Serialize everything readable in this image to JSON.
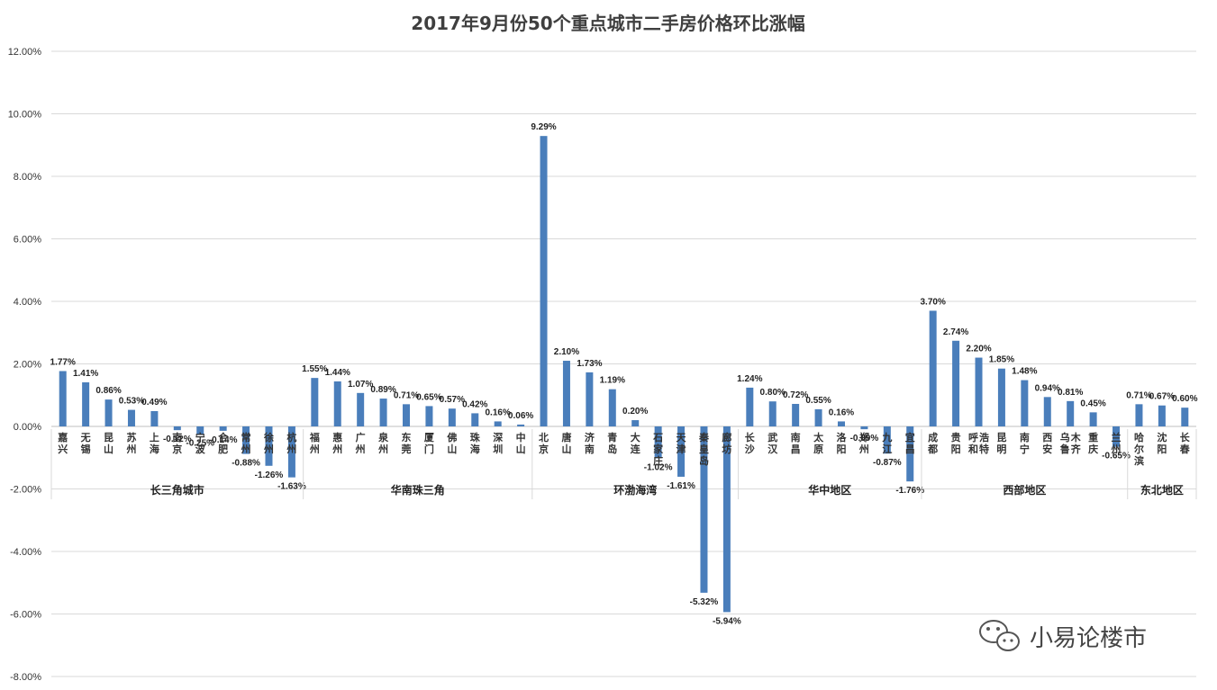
{
  "chart_data": {
    "type": "bar",
    "title": "2017年9月份50个重点城市二手房价格环比涨幅",
    "ylim": [
      -8,
      12
    ],
    "yticks": [
      "12.00%",
      "10.00%",
      "8.00%",
      "6.00%",
      "4.00%",
      "2.00%",
      "0.00%",
      "-2.00%",
      "-4.00%",
      "-6.00%",
      "-8.00%"
    ],
    "ytick_values": [
      12,
      10,
      8,
      6,
      4,
      2,
      0,
      -2,
      -4,
      -6,
      -8
    ],
    "grid": true,
    "legend": "none",
    "bar_color": "#4a7ebb",
    "categories": [
      "嘉兴",
      "无锡",
      "昆山",
      "苏州",
      "上海",
      "南京",
      "宁波",
      "合肥",
      "常州",
      "徐州",
      "杭州",
      "福州",
      "惠州",
      "广州",
      "泉州",
      "东莞",
      "厦门",
      "佛山",
      "珠海",
      "深圳",
      "中山",
      "北京",
      "唐山",
      "济南",
      "青岛",
      "大连",
      "石家庄",
      "天津",
      "秦皇岛",
      "廊坊",
      "长沙",
      "武汉",
      "南昌",
      "太原",
      "洛阳",
      "郑州",
      "九江",
      "宜昌",
      "成都",
      "贵阳",
      "呼和浩特",
      "昆明",
      "南宁",
      "西安",
      "乌鲁木齐",
      "重庆",
      "兰州",
      "哈尔滨",
      "沈阳",
      "长春"
    ],
    "values": [
      1.77,
      1.41,
      0.86,
      0.53,
      0.49,
      -0.12,
      -0.25,
      -0.14,
      -0.88,
      -1.26,
      -1.63,
      1.55,
      1.44,
      1.07,
      0.89,
      0.71,
      0.65,
      0.57,
      0.42,
      0.16,
      0.06,
      9.29,
      2.1,
      1.73,
      1.19,
      0.2,
      -1.02,
      -1.61,
      -5.32,
      -5.94,
      1.24,
      0.8,
      0.72,
      0.55,
      0.16,
      -0.09,
      -0.87,
      -1.76,
      3.7,
      2.74,
      2.2,
      1.85,
      1.48,
      0.94,
      0.81,
      0.45,
      -0.65,
      0.71,
      0.67,
      0.6
    ],
    "data_labels": [
      "1.77%",
      "1.41%",
      "0.86%",
      "0.53%",
      "0.49%",
      "-0.12%",
      "-0.25%",
      "-0.14%",
      "-0.88%",
      "-1.26%",
      "-1.63%",
      "1.55%",
      "1.44%",
      "1.07%",
      "0.89%",
      "0.71%",
      "0.65%",
      "0.57%",
      "0.42%",
      "0.16%",
      "0.06%",
      "9.29%",
      "2.10%",
      "1.73%",
      "1.19%",
      "0.20%",
      "-1.02%",
      "-1.61%",
      "-5.32%",
      "-5.94%",
      "1.24%",
      "0.80%",
      "0.72%",
      "0.55%",
      "0.16%",
      "-0.09%",
      "-0.87%",
      "-1.76%",
      "3.70%",
      "2.74%",
      "2.20%",
      "1.85%",
      "1.48%",
      "0.94%",
      "0.81%",
      "0.45%",
      "-0.65%",
      "0.71%",
      "0.67%",
      "0.60%"
    ],
    "groups": [
      {
        "label": "长三角城市",
        "start": 0,
        "end": 10
      },
      {
        "label": "华南珠三角",
        "start": 11,
        "end": 20
      },
      {
        "label": "环渤海湾",
        "start": 21,
        "end": 29
      },
      {
        "label": "华中地区",
        "start": 30,
        "end": 37
      },
      {
        "label": "西部地区",
        "start": 38,
        "end": 46
      },
      {
        "label": "东北地区",
        "start": 47,
        "end": 49
      }
    ]
  },
  "watermark": {
    "text": "小易论楼市",
    "icon": "wechat-icon"
  }
}
